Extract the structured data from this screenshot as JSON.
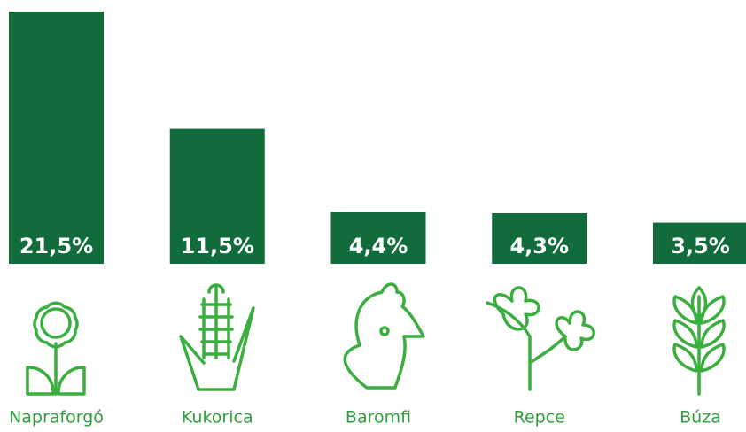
{
  "chart_data": {
    "type": "bar",
    "categories": [
      "Napraforgó",
      "Kukorica",
      "Baromfi",
      "Repce",
      "Búza"
    ],
    "values": [
      21.5,
      11.5,
      4.4,
      4.3,
      3.5
    ],
    "value_labels": [
      "21,5%",
      "11,5%",
      "4,4%",
      "4,3%",
      "3,5%"
    ],
    "color": "#116b3a"
  }
}
